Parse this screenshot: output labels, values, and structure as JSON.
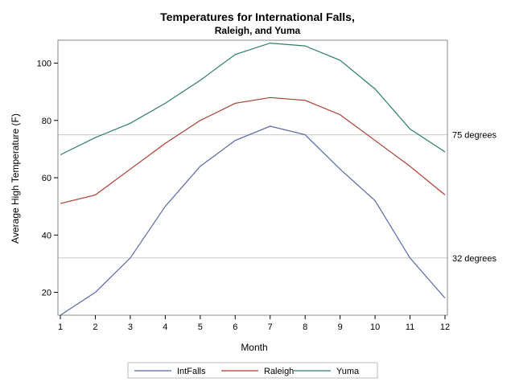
{
  "chart_data": {
    "type": "line",
    "title": "Temperatures for International Falls,",
    "subtitle": "Raleigh, and Yuma",
    "xlabel": "Month",
    "ylabel": "Average High Temperature (F)",
    "x": [
      1,
      2,
      3,
      4,
      5,
      6,
      7,
      8,
      9,
      10,
      11,
      12
    ],
    "xlim": [
      1,
      12
    ],
    "ylim": [
      12,
      108
    ],
    "yticks": [
      20,
      40,
      60,
      80,
      100
    ],
    "series": [
      {
        "name": "IntFalls",
        "color": "#5a67a6",
        "values": [
          12,
          20,
          32,
          50,
          64,
          73,
          78,
          75,
          63,
          52,
          32,
          18
        ]
      },
      {
        "name": "Raleigh",
        "color": "#b03a2e",
        "values": [
          51,
          54,
          63,
          72,
          80,
          86,
          88,
          87,
          82,
          73,
          64,
          54
        ]
      },
      {
        "name": "Yuma",
        "color": "#2e7d6b",
        "values": [
          68,
          74,
          79,
          86,
          94,
          103,
          107,
          106,
          101,
          91,
          77,
          69
        ]
      }
    ],
    "reference_lines": [
      {
        "value": 75,
        "label": "75 degrees"
      },
      {
        "value": 32,
        "label": "32 degrees"
      }
    ],
    "grid": false,
    "legend_position": "bottom"
  }
}
